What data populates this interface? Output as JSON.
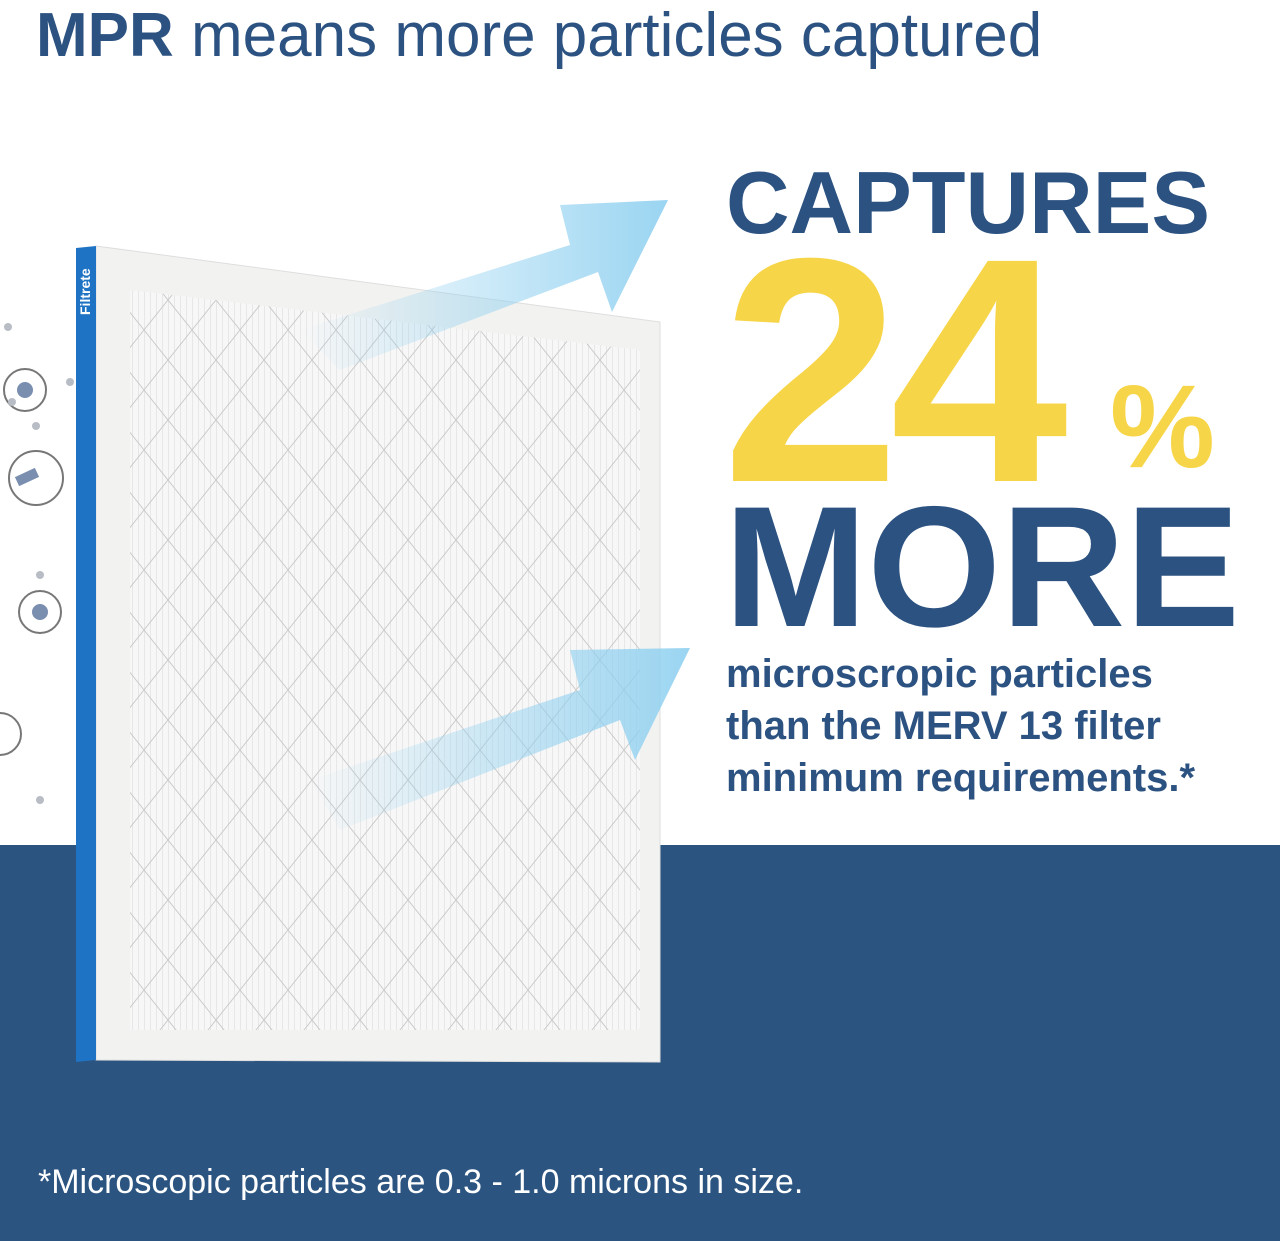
{
  "header": {
    "title_bold": "MPR",
    "title_rest": " means more particles captured"
  },
  "product": {
    "brand": "Filtrete"
  },
  "claim": {
    "line1": "CAPTURES",
    "number": "24",
    "percent_sign": "%",
    "line2": "MORE",
    "details": [
      "microscropic particles",
      "than the MERV 13 filter",
      "minimum requirements.*"
    ]
  },
  "footnote": "*Microscopic particles are 0.3 - 1.0 microns in size.",
  "icons": [
    "gear-icon",
    "spray-icon",
    "gear-icon",
    "particles-icon"
  ],
  "colors": {
    "navy": "#2b5281",
    "yellow": "#f7d548",
    "band": "#2b5480",
    "filter_edge": "#1f73c4",
    "arrow": "#8fd0f0"
  }
}
